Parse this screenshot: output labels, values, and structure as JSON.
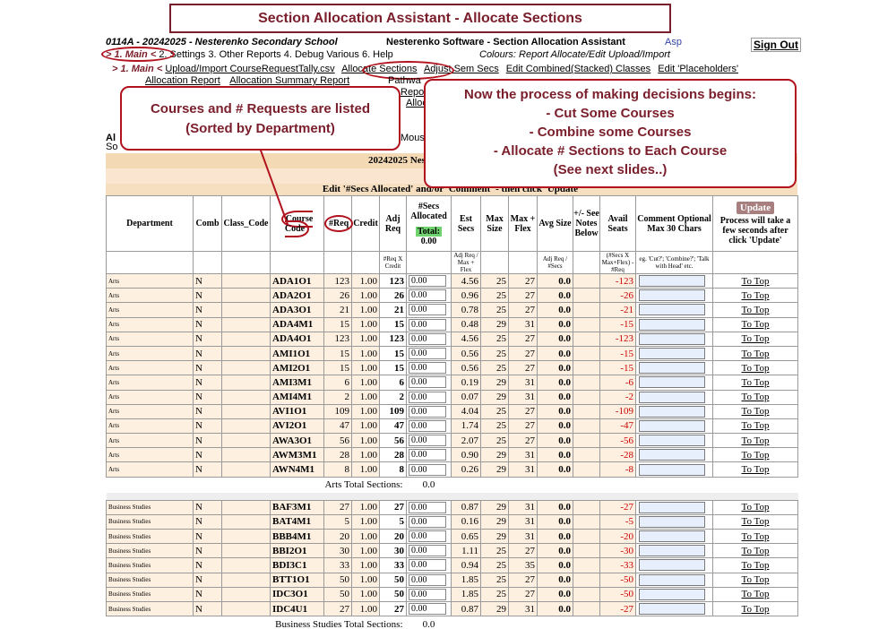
{
  "title": "Section Allocation Assistant - Allocate Sections",
  "school": "0114A - 20242025 - Nesterenko Secondary School",
  "vendor": "Nesterenko Software - Section Allocation Assistant",
  "asp": "Asp",
  "signout": "Sign Out",
  "menu": {
    "current": "> 1. Main <",
    "items": "2. Settings  3. Other Reports  4. Debug Various  6. Help"
  },
  "colours": "Colours: Report Allocate/Edit Upload/Import",
  "submenu": {
    "current": "> 1. Main <",
    "links": [
      "Upload/Import CourseRequestTally.csv",
      "Allocate Sections",
      "Adjust Sem Secs",
      "Edit Combined(Stacked) Classes",
      "Edit 'Placeholders'"
    ],
    "row2": [
      "Allocation Report",
      "Allocation Summary Report"
    ],
    "frag_pathway": "Pathwa",
    "frag_report": "Report",
    "frag_alloc": "Alloc",
    "frag_al": "Al",
    "frag_so": "So",
    "frag_mous": "Mous"
  },
  "callouts": {
    "left": [
      "Courses and # Requests are listed",
      "(Sorted by Department)"
    ],
    "right": [
      "Now the process of making decisions begins:",
      "- Cut Some Courses",
      "- Combine some Courses",
      "- Allocate # Sections to Each Course",
      "(See next slides..)"
    ]
  },
  "bands": {
    "year": "20242025 Nesterenko Secondary School",
    "al": "Al",
    "instruction": "Edit '#Secs Allocated' and/or 'Comment' - then click 'Update'"
  },
  "headers": {
    "department": "Department",
    "comb": "Comb",
    "class_code": "Class_Code",
    "course_code": "Course Code",
    "req": "#Req",
    "credit": "Credit",
    "adj_req": "Adj Req",
    "secs_allocated": "#Secs Allocated",
    "total_label": "Total:",
    "total_value": "0.00",
    "est_secs": "Est Secs",
    "max_size": "Max Size",
    "max_flex": "Max + Flex",
    "avg_size": "Avg Size",
    "see_notes": "+/- See Notes Below",
    "avail_seats": "Avail Seats",
    "comment": "Comment Optional Max 30 Chars",
    "update_btn": "Update",
    "update_note": "Process will take a few seconds after click 'Update'",
    "sub_adj": "#Req X Credit",
    "sub_est": "Adj Req / Max + Flex",
    "sub_avg": "Adj Req / #Secs",
    "sub_avail": "(#Secs X Max+Flex) - #Req",
    "sub_comment": "eg. 'Cut?'; 'Combine?'; 'Talk with Head' etc."
  },
  "groups": [
    {
      "dept": "Arts",
      "total_label": "Arts Total Sections:",
      "total_value": "0.0",
      "rows": [
        {
          "code": "ADA1O1",
          "req": "123",
          "credit": "1.00",
          "adj": "123",
          "alloc": "0.00",
          "est": "4.56",
          "max": "25",
          "flex": "27",
          "avg": "0.0",
          "avail": "-123"
        },
        {
          "code": "ADA2O1",
          "req": "26",
          "credit": "1.00",
          "adj": "26",
          "alloc": "0.00",
          "est": "0.96",
          "max": "25",
          "flex": "27",
          "avg": "0.0",
          "avail": "-26"
        },
        {
          "code": "ADA3O1",
          "req": "21",
          "credit": "1.00",
          "adj": "21",
          "alloc": "0.00",
          "est": "0.78",
          "max": "25",
          "flex": "27",
          "avg": "0.0",
          "avail": "-21"
        },
        {
          "code": "ADA4M1",
          "req": "15",
          "credit": "1.00",
          "adj": "15",
          "alloc": "0.00",
          "est": "0.48",
          "max": "29",
          "flex": "31",
          "avg": "0.0",
          "avail": "-15"
        },
        {
          "code": "ADA4O1",
          "req": "123",
          "credit": "1.00",
          "adj": "123",
          "alloc": "0.00",
          "est": "4.56",
          "max": "25",
          "flex": "27",
          "avg": "0.0",
          "avail": "-123"
        },
        {
          "code": "AMI1O1",
          "req": "15",
          "credit": "1.00",
          "adj": "15",
          "alloc": "0.00",
          "est": "0.56",
          "max": "25",
          "flex": "27",
          "avg": "0.0",
          "avail": "-15"
        },
        {
          "code": "AMI2O1",
          "req": "15",
          "credit": "1.00",
          "adj": "15",
          "alloc": "0.00",
          "est": "0.56",
          "max": "25",
          "flex": "27",
          "avg": "0.0",
          "avail": "-15"
        },
        {
          "code": "AMI3M1",
          "req": "6",
          "credit": "1.00",
          "adj": "6",
          "alloc": "0.00",
          "est": "0.19",
          "max": "29",
          "flex": "31",
          "avg": "0.0",
          "avail": "-6"
        },
        {
          "code": "AMI4M1",
          "req": "2",
          "credit": "1.00",
          "adj": "2",
          "alloc": "0.00",
          "est": "0.07",
          "max": "29",
          "flex": "31",
          "avg": "0.0",
          "avail": "-2"
        },
        {
          "code": "AVI1O1",
          "req": "109",
          "credit": "1.00",
          "adj": "109",
          "alloc": "0.00",
          "est": "4.04",
          "max": "25",
          "flex": "27",
          "avg": "0.0",
          "avail": "-109"
        },
        {
          "code": "AVI2O1",
          "req": "47",
          "credit": "1.00",
          "adj": "47",
          "alloc": "0.00",
          "est": "1.74",
          "max": "25",
          "flex": "27",
          "avg": "0.0",
          "avail": "-47"
        },
        {
          "code": "AWA3O1",
          "req": "56",
          "credit": "1.00",
          "adj": "56",
          "alloc": "0.00",
          "est": "2.07",
          "max": "25",
          "flex": "27",
          "avg": "0.0",
          "avail": "-56"
        },
        {
          "code": "AWM3M1",
          "req": "28",
          "credit": "1.00",
          "adj": "28",
          "alloc": "0.00",
          "est": "0.90",
          "max": "29",
          "flex": "31",
          "avg": "0.0",
          "avail": "-28"
        },
        {
          "code": "AWN4M1",
          "req": "8",
          "credit": "1.00",
          "adj": "8",
          "alloc": "0.00",
          "est": "0.26",
          "max": "29",
          "flex": "31",
          "avg": "0.0",
          "avail": "-8"
        }
      ]
    },
    {
      "dept": "Business Studies",
      "total_label": "Business Studies Total Sections:",
      "total_value": "0.0",
      "rows": [
        {
          "code": "BAF3M1",
          "req": "27",
          "credit": "1.00",
          "adj": "27",
          "alloc": "0.00",
          "est": "0.87",
          "max": "29",
          "flex": "31",
          "avg": "0.0",
          "avail": "-27"
        },
        {
          "code": "BAT4M1",
          "req": "5",
          "credit": "1.00",
          "adj": "5",
          "alloc": "0.00",
          "est": "0.16",
          "max": "29",
          "flex": "31",
          "avg": "0.0",
          "avail": "-5"
        },
        {
          "code": "BBB4M1",
          "req": "20",
          "credit": "1.00",
          "adj": "20",
          "alloc": "0.00",
          "est": "0.65",
          "max": "29",
          "flex": "31",
          "avg": "0.0",
          "avail": "-20"
        },
        {
          "code": "BBI2O1",
          "req": "30",
          "credit": "1.00",
          "adj": "30",
          "alloc": "0.00",
          "est": "1.11",
          "max": "25",
          "flex": "27",
          "avg": "0.0",
          "avail": "-30"
        },
        {
          "code": "BDI3C1",
          "req": "33",
          "credit": "1.00",
          "adj": "33",
          "alloc": "0.00",
          "est": "0.94",
          "max": "25",
          "flex": "35",
          "avg": "0.0",
          "avail": "-33"
        },
        {
          "code": "BTT1O1",
          "req": "50",
          "credit": "1.00",
          "adj": "50",
          "alloc": "0.00",
          "est": "1.85",
          "max": "25",
          "flex": "27",
          "avg": "0.0",
          "avail": "-50"
        },
        {
          "code": "IDC3O1",
          "req": "50",
          "credit": "1.00",
          "adj": "50",
          "alloc": "0.00",
          "est": "1.85",
          "max": "25",
          "flex": "27",
          "avg": "0.0",
          "avail": "-50"
        },
        {
          "code": "IDC4U1",
          "req": "27",
          "credit": "1.00",
          "adj": "27",
          "alloc": "0.00",
          "est": "0.87",
          "max": "29",
          "flex": "31",
          "avg": "0.0",
          "avail": "-27"
        }
      ]
    }
  ],
  "comb_value": "N",
  "to_top": "To Top",
  "colors": {
    "accent": "#7b1e2b",
    "ring": "#b1121d",
    "band": "#f4d9b5",
    "row": "#fdf0e0",
    "negative": "#cc0000"
  }
}
